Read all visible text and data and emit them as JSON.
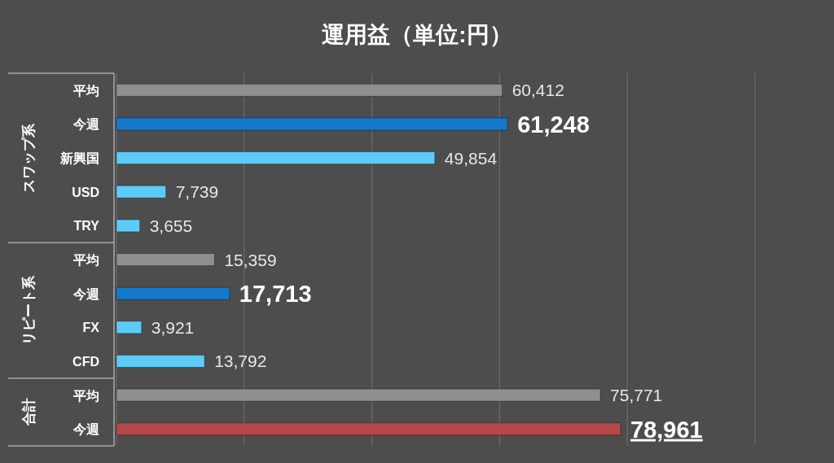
{
  "chart_data": {
    "type": "bar",
    "orientation": "horizontal",
    "title": "運用益（単位:円）",
    "categories": [
      "平均",
      "今週",
      "新興国",
      "USD",
      "TRY",
      "平均",
      "今週",
      "FX",
      "CFD",
      "平均",
      "今週"
    ],
    "values": [
      60412,
      61248,
      49854,
      7739,
      3655,
      15359,
      17713,
      3921,
      13792,
      75771,
      78961
    ],
    "value_labels": [
      "60,412",
      "61,248",
      "49,854",
      "7,739",
      "3,655",
      "15,359",
      "17,713",
      "3,921",
      "13,792",
      "75,771",
      "78,961"
    ],
    "colors": [
      "#8f8f8f",
      "#1479c9",
      "#5ecbf6",
      "#5ecbf6",
      "#5ecbf6",
      "#8f8f8f",
      "#1479c9",
      "#5ecbf6",
      "#5ecbf6",
      "#8f8f8f",
      "#b54848"
    ],
    "tick_labels": "y",
    "grid": "x",
    "annotations": [
      "スワップ系",
      "リピート系",
      "合計"
    ]
  }
}
